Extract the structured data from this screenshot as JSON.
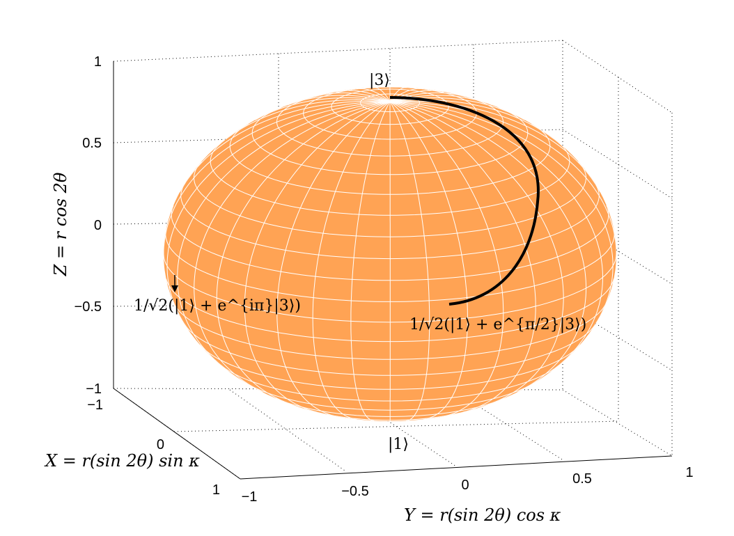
{
  "chart_data": {
    "type": "surface3d",
    "title": "",
    "xlabel": "X = r(sin 2θ) sin κ",
    "ylabel": "Y = r(sin 2θ) cos κ",
    "zlabel": "Z = r cos 2θ",
    "xlim": [
      -1,
      1
    ],
    "ylim": [
      -1,
      1
    ],
    "zlim": [
      -1,
      1
    ],
    "x_ticks": [
      "−1",
      "0",
      "1"
    ],
    "y_ticks": [
      "−1",
      "−0.5",
      "0",
      "0.5",
      "1"
    ],
    "z_ticks": [
      "1",
      "0.5",
      "0",
      "−0.5",
      "−1"
    ],
    "grid": true,
    "surface": {
      "shape": "sphere",
      "radius": 1,
      "color": "#ffa354",
      "mesh_color": "#ffffff"
    },
    "path": {
      "points": [
        {
          "x": 0,
          "y": 0,
          "z": 1
        },
        {
          "x": 0,
          "y": 0.5,
          "z": 0.866
        },
        {
          "x": 0,
          "y": 0.866,
          "z": 0.5
        },
        {
          "x": 0,
          "y": 1,
          "z": 0
        }
      ],
      "color": "#000000"
    },
    "annotations": [
      {
        "text": "|3⟩",
        "x": 0,
        "y": 0,
        "z": 1
      },
      {
        "text": "|1⟩",
        "x": 0,
        "y": 0,
        "z": -1
      },
      {
        "text": "1/√2(|1⟩ + e^{π/2}|3⟩)",
        "x": 0,
        "y": 1,
        "z": 0
      },
      {
        "text": "1/√2(|1⟩ + e^{iπ}|3⟩)",
        "x": 0,
        "y": -1,
        "z": 0
      }
    ]
  }
}
